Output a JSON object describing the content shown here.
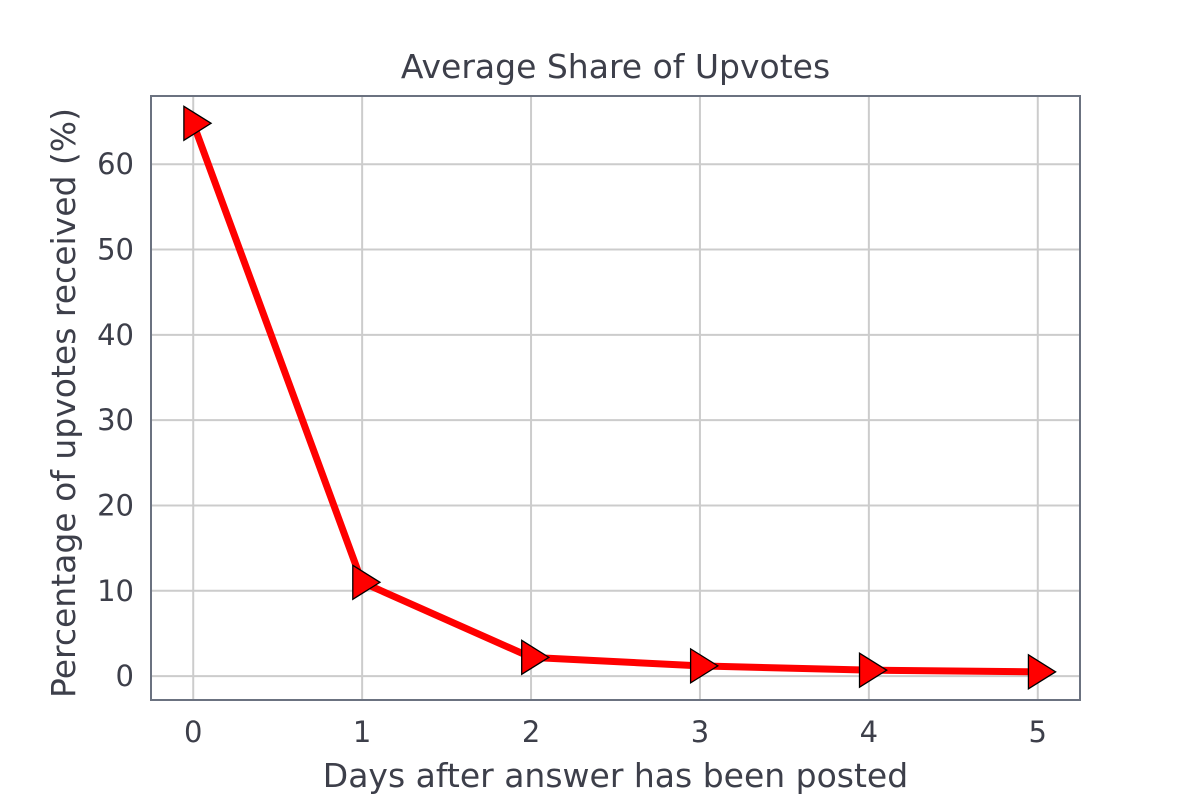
{
  "chart_data": {
    "type": "line",
    "title": "Average Share of Upvotes",
    "xlabel": "Days after answer has been posted",
    "ylabel": "Percentage of upvotes received (%)",
    "x": [
      0,
      1,
      2,
      3,
      4,
      5
    ],
    "series": [
      {
        "values": [
          64.8,
          11.0,
          2.2,
          1.2,
          0.7,
          0.5
        ],
        "color": "#ff0000",
        "marker": "triangle-right",
        "marker_fill": "#ff0000",
        "marker_edge": "#000000"
      }
    ],
    "xlim": [
      -0.25,
      5.25
    ],
    "ylim": [
      -2.8,
      68.0
    ],
    "xticks": [
      0,
      1,
      2,
      3,
      4,
      5
    ],
    "yticks": [
      0,
      10,
      20,
      30,
      40,
      50,
      60
    ],
    "grid": true,
    "grid_color": "#cccccc",
    "spine_color": "#6b7280",
    "text_color": "#3d3f4a"
  }
}
